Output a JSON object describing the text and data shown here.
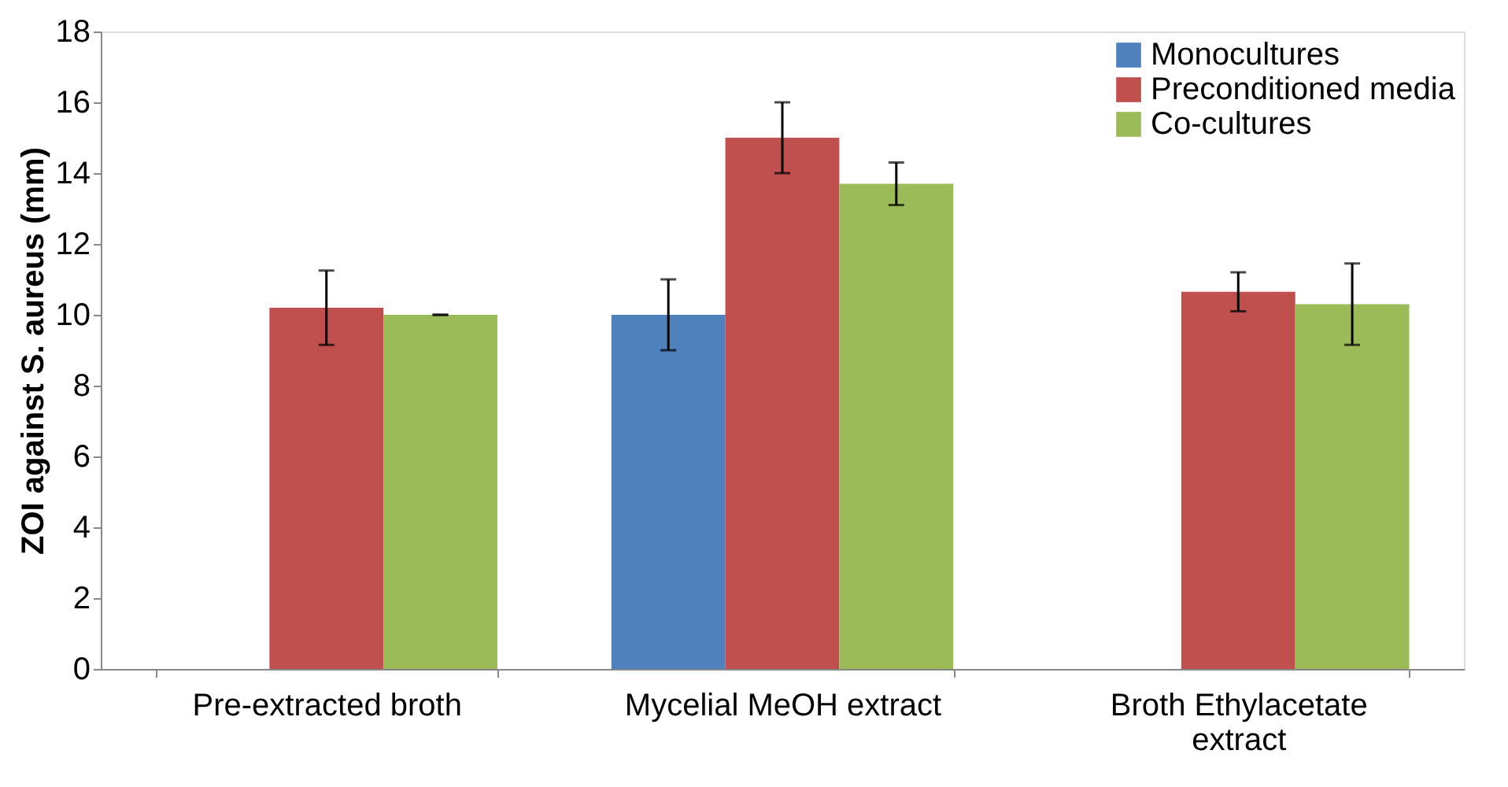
{
  "chart_data": {
    "type": "bar",
    "ylabel": "ZOI against S. aureus (mm)",
    "categories": [
      "Pre-extracted broth",
      "Mycelial MeOH extract",
      "Broth Ethylacetate extract"
    ],
    "series": [
      {
        "name": "Monocultures",
        "color": "#4f81bd",
        "values": [
          0,
          10,
          0
        ],
        "errors": [
          null,
          1,
          null
        ]
      },
      {
        "name": "Preconditioned media",
        "color": "#c0504d",
        "values": [
          10.2,
          15,
          10.65
        ],
        "errors": [
          1.05,
          1,
          0.55
        ]
      },
      {
        "name": "Co-cultures",
        "color": "#9bbb59",
        "values": [
          10.0,
          13.7,
          10.3
        ],
        "errors": [
          0,
          0.6,
          1.15
        ]
      }
    ],
    "ylim": [
      0,
      18
    ],
    "yticks": [
      0,
      2,
      4,
      6,
      8,
      10,
      12,
      14,
      16,
      18
    ],
    "grid": false,
    "legend": "top right"
  }
}
